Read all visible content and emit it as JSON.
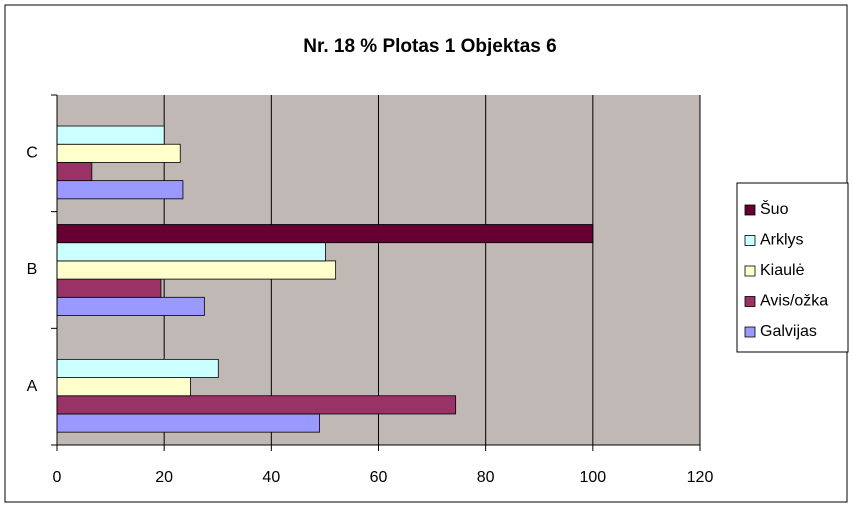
{
  "chart_data": {
    "type": "hbar",
    "title": "Nr. 18 % Plotas 1 Objektas 6",
    "categories": [
      "A",
      "B",
      "C"
    ],
    "series": [
      {
        "name": "Galvijas",
        "color": "#9999ff",
        "values": [
          49,
          27.5,
          23.5
        ]
      },
      {
        "name": "Avis/ožka",
        "color": "#993366",
        "values": [
          74.4,
          19.4,
          6.5
        ]
      },
      {
        "name": "Kiaulė",
        "color": "#ffffcc",
        "values": [
          24.9,
          52,
          23
        ]
      },
      {
        "name": "Arklys",
        "color": "#ccffff",
        "values": [
          30.1,
          50.1,
          20
        ]
      },
      {
        "name": "Šuo",
        "color": "#660033",
        "values": [
          null,
          100,
          null
        ]
      }
    ],
    "xlim": [
      0,
      120
    ],
    "xticks": [
      0,
      20,
      40,
      60,
      80,
      100,
      120
    ],
    "grid": true,
    "legend": "right",
    "plot_background": "#c0b8b5"
  }
}
